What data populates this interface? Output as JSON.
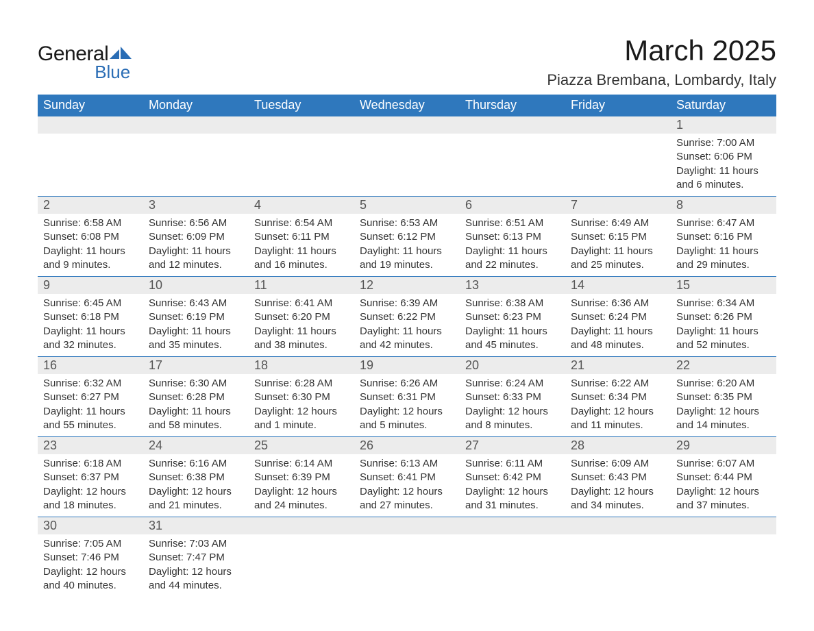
{
  "logo": {
    "text1": "General",
    "text2": "Blue",
    "shape_color": "#2a6db5",
    "text1_color": "#1a1a1a"
  },
  "title": "March 2025",
  "location": "Piazza Brembana, Lombardy, Italy",
  "colors": {
    "header_bg": "#2f78bd",
    "header_text": "#ffffff",
    "daynum_bg": "#ececec",
    "daynum_text": "#555555",
    "row_divider": "#2f78bd",
    "body_text": "#333333"
  },
  "typography": {
    "title_fontsize": 42,
    "location_fontsize": 22,
    "header_fontsize": 18,
    "daynum_fontsize": 18,
    "details_fontsize": 15
  },
  "columns": [
    "Sunday",
    "Monday",
    "Tuesday",
    "Wednesday",
    "Thursday",
    "Friday",
    "Saturday"
  ],
  "weeks": [
    [
      null,
      null,
      null,
      null,
      null,
      null,
      {
        "n": "1",
        "sunrise": "7:00 AM",
        "sunset": "6:06 PM",
        "daylight": "11 hours and 6 minutes."
      }
    ],
    [
      {
        "n": "2",
        "sunrise": "6:58 AM",
        "sunset": "6:08 PM",
        "daylight": "11 hours and 9 minutes."
      },
      {
        "n": "3",
        "sunrise": "6:56 AM",
        "sunset": "6:09 PM",
        "daylight": "11 hours and 12 minutes."
      },
      {
        "n": "4",
        "sunrise": "6:54 AM",
        "sunset": "6:11 PM",
        "daylight": "11 hours and 16 minutes."
      },
      {
        "n": "5",
        "sunrise": "6:53 AM",
        "sunset": "6:12 PM",
        "daylight": "11 hours and 19 minutes."
      },
      {
        "n": "6",
        "sunrise": "6:51 AM",
        "sunset": "6:13 PM",
        "daylight": "11 hours and 22 minutes."
      },
      {
        "n": "7",
        "sunrise": "6:49 AM",
        "sunset": "6:15 PM",
        "daylight": "11 hours and 25 minutes."
      },
      {
        "n": "8",
        "sunrise": "6:47 AM",
        "sunset": "6:16 PM",
        "daylight": "11 hours and 29 minutes."
      }
    ],
    [
      {
        "n": "9",
        "sunrise": "6:45 AM",
        "sunset": "6:18 PM",
        "daylight": "11 hours and 32 minutes."
      },
      {
        "n": "10",
        "sunrise": "6:43 AM",
        "sunset": "6:19 PM",
        "daylight": "11 hours and 35 minutes."
      },
      {
        "n": "11",
        "sunrise": "6:41 AM",
        "sunset": "6:20 PM",
        "daylight": "11 hours and 38 minutes."
      },
      {
        "n": "12",
        "sunrise": "6:39 AM",
        "sunset": "6:22 PM",
        "daylight": "11 hours and 42 minutes."
      },
      {
        "n": "13",
        "sunrise": "6:38 AM",
        "sunset": "6:23 PM",
        "daylight": "11 hours and 45 minutes."
      },
      {
        "n": "14",
        "sunrise": "6:36 AM",
        "sunset": "6:24 PM",
        "daylight": "11 hours and 48 minutes."
      },
      {
        "n": "15",
        "sunrise": "6:34 AM",
        "sunset": "6:26 PM",
        "daylight": "11 hours and 52 minutes."
      }
    ],
    [
      {
        "n": "16",
        "sunrise": "6:32 AM",
        "sunset": "6:27 PM",
        "daylight": "11 hours and 55 minutes."
      },
      {
        "n": "17",
        "sunrise": "6:30 AM",
        "sunset": "6:28 PM",
        "daylight": "11 hours and 58 minutes."
      },
      {
        "n": "18",
        "sunrise": "6:28 AM",
        "sunset": "6:30 PM",
        "daylight": "12 hours and 1 minute."
      },
      {
        "n": "19",
        "sunrise": "6:26 AM",
        "sunset": "6:31 PM",
        "daylight": "12 hours and 5 minutes."
      },
      {
        "n": "20",
        "sunrise": "6:24 AM",
        "sunset": "6:33 PM",
        "daylight": "12 hours and 8 minutes."
      },
      {
        "n": "21",
        "sunrise": "6:22 AM",
        "sunset": "6:34 PM",
        "daylight": "12 hours and 11 minutes."
      },
      {
        "n": "22",
        "sunrise": "6:20 AM",
        "sunset": "6:35 PM",
        "daylight": "12 hours and 14 minutes."
      }
    ],
    [
      {
        "n": "23",
        "sunrise": "6:18 AM",
        "sunset": "6:37 PM",
        "daylight": "12 hours and 18 minutes."
      },
      {
        "n": "24",
        "sunrise": "6:16 AM",
        "sunset": "6:38 PM",
        "daylight": "12 hours and 21 minutes."
      },
      {
        "n": "25",
        "sunrise": "6:14 AM",
        "sunset": "6:39 PM",
        "daylight": "12 hours and 24 minutes."
      },
      {
        "n": "26",
        "sunrise": "6:13 AM",
        "sunset": "6:41 PM",
        "daylight": "12 hours and 27 minutes."
      },
      {
        "n": "27",
        "sunrise": "6:11 AM",
        "sunset": "6:42 PM",
        "daylight": "12 hours and 31 minutes."
      },
      {
        "n": "28",
        "sunrise": "6:09 AM",
        "sunset": "6:43 PM",
        "daylight": "12 hours and 34 minutes."
      },
      {
        "n": "29",
        "sunrise": "6:07 AM",
        "sunset": "6:44 PM",
        "daylight": "12 hours and 37 minutes."
      }
    ],
    [
      {
        "n": "30",
        "sunrise": "7:05 AM",
        "sunset": "7:46 PM",
        "daylight": "12 hours and 40 minutes."
      },
      {
        "n": "31",
        "sunrise": "7:03 AM",
        "sunset": "7:47 PM",
        "daylight": "12 hours and 44 minutes."
      },
      null,
      null,
      null,
      null,
      null
    ]
  ],
  "labels": {
    "sunrise": "Sunrise:",
    "sunset": "Sunset:",
    "daylight": "Daylight:"
  }
}
